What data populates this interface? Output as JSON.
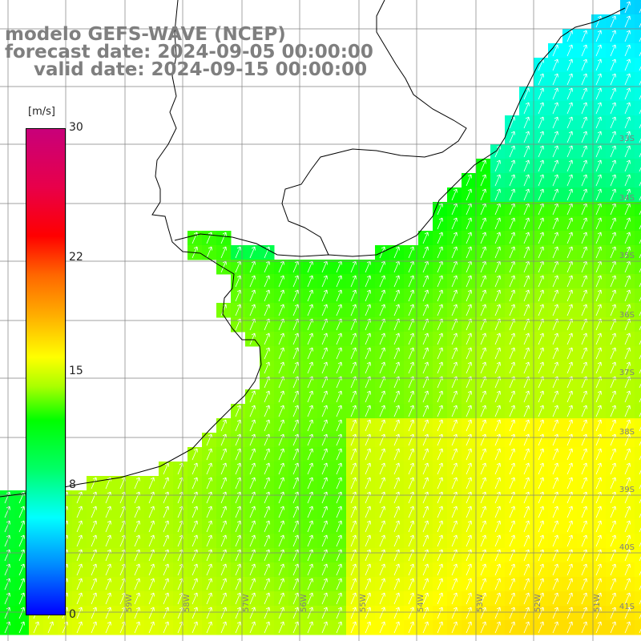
{
  "header": {
    "model": "modelo GEFS-WAVE (NCEP)",
    "forecast": "forecast date: 2024-09-05 00:00:00",
    "valid": "valid date: 2024-09-15 00:00:00"
  },
  "colorbar": {
    "unit": "[m/s]",
    "ticks": [
      {
        "label": "30",
        "value": 30
      },
      {
        "label": "22",
        "value": 22
      },
      {
        "label": "15",
        "value": 15
      },
      {
        "label": "8",
        "value": 8
      },
      {
        "label": "0",
        "value": 0
      }
    ]
  },
  "lat_labels": [
    "33S",
    "34S",
    "35S",
    "36S",
    "37S",
    "38S",
    "39S",
    "40S",
    "41S"
  ],
  "lon_labels": [
    "59W",
    "58W",
    "57W",
    "56W",
    "55W",
    "54W",
    "53W",
    "52W",
    "51W"
  ],
  "colors": {
    "land": "#ffffff",
    "coast": "#000000",
    "grid": "#808080",
    "arrow": "#ffffff"
  }
}
